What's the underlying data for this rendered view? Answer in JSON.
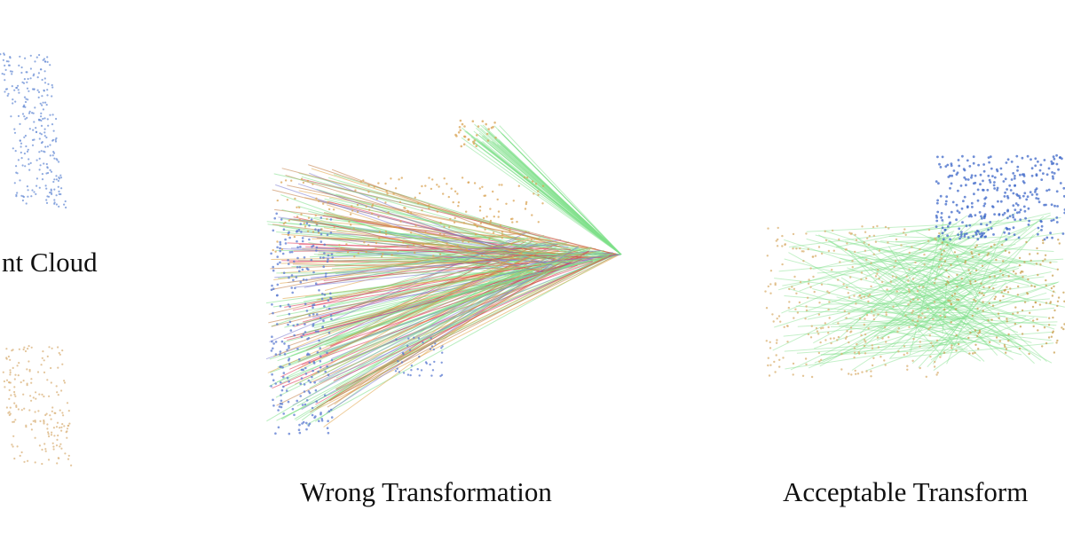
{
  "panels": [
    {
      "caption": "nt Cloud"
    },
    {
      "caption": "Wrong Transformation"
    },
    {
      "caption": "Acceptable Transform"
    }
  ]
}
